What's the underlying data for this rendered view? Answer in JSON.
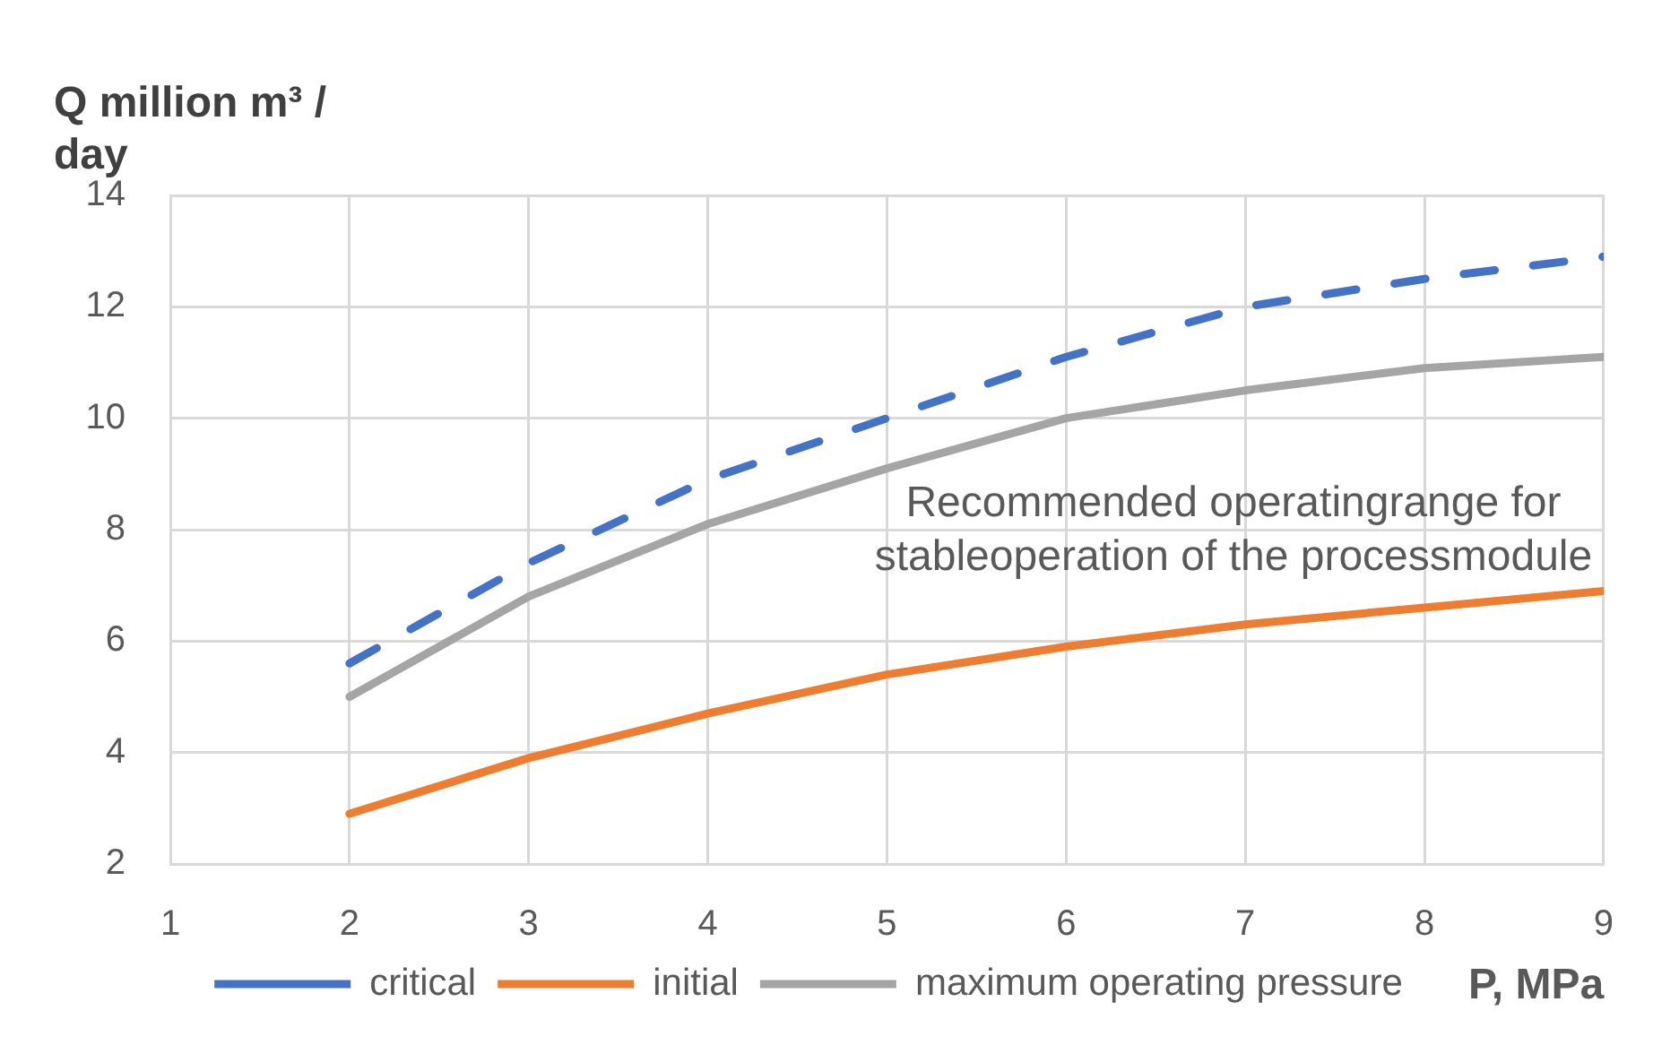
{
  "chart_data": {
    "type": "line",
    "xlabel": "P, MPa",
    "ylabel": "Q million m³ / day",
    "annotations": [
      "Recommended operatingrange for stableoperation of the processmodule"
    ],
    "x": [
      2,
      3,
      4,
      5,
      6,
      7,
      8,
      9
    ],
    "series": [
      {
        "name": "critical",
        "color": "#4472c4",
        "line_style": "dashed",
        "values": [
          5.6,
          7.4,
          8.9,
          10.0,
          11.1,
          12.0,
          12.5,
          12.9
        ]
      },
      {
        "name": "initial",
        "color": "#ed7d31",
        "values": [
          2.9,
          3.9,
          4.7,
          5.4,
          5.9,
          6.3,
          6.6,
          6.9
        ]
      },
      {
        "name": "maximum operating pressure",
        "color": "#a5a5a5",
        "values": [
          5.0,
          6.8,
          8.1,
          9.1,
          10.0,
          10.5,
          10.9,
          11.1
        ]
      }
    ],
    "xlim": [
      1,
      9
    ],
    "xticks": [
      1,
      2,
      3,
      4,
      5,
      6,
      7,
      8,
      9
    ],
    "ylim": [
      2,
      14
    ],
    "yticks": [
      2,
      4,
      6,
      8,
      10,
      12,
      14
    ],
    "grid": true,
    "legend": "bottom",
    "marker": "none"
  }
}
